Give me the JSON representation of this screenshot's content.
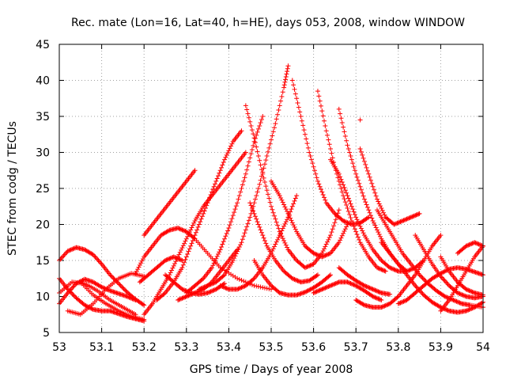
{
  "chart_data": {
    "type": "scatter",
    "title": "Rec. mate (Lon=16, Lat=40, h=HE), days 053, 2008, window WINDOW",
    "xlabel": "GPS time / Days of year 2008",
    "ylabel": "STEC from codg / TECUs",
    "xlim": [
      53,
      54
    ],
    "ylim": [
      5,
      45
    ],
    "xticks": [
      "53",
      "53.1",
      "53.2",
      "53.3",
      "53.4",
      "53.5",
      "53.6",
      "53.7",
      "53.8",
      "53.9",
      "54"
    ],
    "yticks": [
      "5",
      "10",
      "15",
      "20",
      "25",
      "30",
      "35",
      "40",
      "45"
    ],
    "grid": true,
    "marker": "+",
    "color": "#ff0000",
    "series": [
      {
        "x": [
          53.0,
          53.02,
          53.04,
          53.06,
          53.08,
          53.1,
          53.12,
          53.14,
          53.16,
          53.18,
          53.2
        ],
        "y": [
          15.0,
          16.3,
          16.8,
          16.5,
          15.8,
          14.5,
          13.0,
          11.8,
          10.6,
          9.6,
          8.8
        ]
      },
      {
        "x": [
          53.0,
          53.02,
          53.04,
          53.06,
          53.08,
          53.1,
          53.12,
          53.14,
          53.16,
          53.18,
          53.2
        ],
        "y": [
          12.5,
          11.0,
          9.8,
          8.8,
          8.2,
          8.0,
          8.0,
          7.6,
          7.2,
          6.9,
          6.6
        ]
      },
      {
        "x": [
          53.0,
          53.02,
          53.04,
          53.06,
          53.08,
          53.1,
          53.12,
          53.14,
          53.16,
          53.18
        ],
        "y": [
          9.0,
          10.5,
          11.8,
          12.4,
          12.0,
          11.3,
          10.8,
          10.4,
          10.0,
          9.5
        ]
      },
      {
        "x": [
          53.0,
          53.03,
          53.06,
          53.09,
          53.12,
          53.15,
          53.18
        ],
        "y": [
          10.5,
          12.0,
          11.8,
          10.8,
          9.5,
          8.5,
          7.5
        ]
      },
      {
        "x": [
          53.02,
          53.05,
          53.08,
          53.11,
          53.14,
          53.17,
          53.2
        ],
        "y": [
          8.0,
          7.5,
          9.0,
          11.0,
          12.5,
          13.2,
          12.8
        ]
      },
      {
        "x": [
          53.05,
          53.08,
          53.11,
          53.14,
          53.17,
          53.2
        ],
        "y": [
          12.0,
          10.2,
          9.0,
          8.0,
          7.2,
          6.8
        ]
      },
      {
        "x": [
          53.18,
          53.2,
          53.22,
          53.24,
          53.26,
          53.28,
          53.3,
          53.32,
          53.35,
          53.38,
          53.42,
          53.46,
          53.5
        ],
        "y": [
          13.2,
          15.5,
          17.0,
          18.5,
          19.2,
          19.5,
          19.0,
          18.0,
          16.0,
          14.0,
          12.5,
          11.5,
          11.0
        ]
      },
      {
        "x": [
          53.2,
          53.22,
          53.24,
          53.26,
          53.28,
          53.3,
          53.32,
          53.34,
          53.36,
          53.38,
          53.4,
          53.42,
          53.44
        ],
        "y": [
          7.5,
          9.0,
          11.0,
          13.0,
          15.5,
          18.0,
          20.5,
          22.5,
          24.0,
          25.5,
          27.0,
          28.5,
          30.0
        ]
      },
      {
        "x": [
          53.2,
          53.22,
          53.24,
          53.26,
          53.28,
          53.3,
          53.32
        ],
        "y": [
          18.5,
          20.0,
          21.5,
          23.0,
          24.5,
          26.0,
          27.5
        ]
      },
      {
        "x": [
          53.23,
          53.25,
          53.27,
          53.29,
          53.31,
          53.33,
          53.35,
          53.37,
          53.39,
          53.41,
          53.43
        ],
        "y": [
          9.5,
          10.5,
          12.0,
          14.0,
          17.0,
          20.0,
          23.0,
          26.0,
          29.0,
          31.5,
          33.0
        ]
      },
      {
        "x": [
          53.3,
          53.32,
          53.34,
          53.36,
          53.38,
          53.4,
          53.42,
          53.44,
          53.46,
          53.48
        ],
        "y": [
          10.5,
          11.5,
          12.5,
          14.0,
          16.5,
          19.5,
          23.0,
          27.0,
          31.5,
          35.0
        ]
      },
      {
        "x": [
          53.33,
          53.35,
          53.37,
          53.39,
          53.41,
          53.43,
          53.45,
          53.47,
          53.49,
          53.51,
          53.53,
          53.54
        ],
        "y": [
          11.0,
          11.5,
          12.0,
          13.0,
          15.0,
          17.5,
          21.0,
          25.0,
          29.5,
          34.0,
          39.0,
          42.0
        ]
      },
      {
        "x": [
          53.44,
          53.46,
          53.48,
          53.5,
          53.52,
          53.54,
          53.56,
          53.58,
          53.6,
          53.62,
          53.64,
          53.66
        ],
        "y": [
          36.5,
          32.0,
          27.0,
          22.5,
          19.0,
          16.5,
          15.0,
          14.0,
          14.5,
          16.0,
          18.5,
          22.0
        ]
      },
      {
        "x": [
          53.45,
          53.47,
          53.49,
          53.51,
          53.53,
          53.55,
          53.57,
          53.59,
          53.61
        ],
        "y": [
          23.0,
          20.0,
          17.0,
          15.0,
          13.5,
          12.5,
          12.0,
          12.2,
          13.0
        ]
      },
      {
        "x": [
          53.5,
          53.52,
          53.54,
          53.56,
          53.58,
          53.6,
          53.62,
          53.64,
          53.66,
          53.68
        ],
        "y": [
          26.0,
          24.0,
          21.5,
          19.0,
          17.0,
          16.0,
          15.5,
          16.0,
          17.5,
          20.0
        ]
      },
      {
        "x": [
          53.55,
          53.57,
          53.59,
          53.61,
          53.63,
          53.65,
          53.67,
          53.69,
          53.71,
          53.73
        ],
        "y": [
          40.0,
          35.0,
          30.0,
          26.0,
          23.0,
          21.5,
          20.5,
          20.0,
          20.2,
          21.0
        ]
      },
      {
        "x": [
          53.61,
          53.63,
          53.65,
          53.67,
          53.69,
          53.71,
          53.73,
          53.75,
          53.77
        ],
        "y": [
          38.5,
          33.0,
          28.0,
          24.0,
          20.5,
          17.5,
          15.5,
          14.0,
          13.5
        ]
      },
      {
        "x": [
          53.64,
          53.66,
          53.68,
          53.7,
          53.72,
          53.74,
          53.76,
          53.78,
          53.8,
          53.82,
          53.84,
          53.86
        ],
        "y": [
          29.0,
          27.0,
          24.0,
          21.0,
          18.5,
          16.5,
          15.0,
          14.0,
          13.5,
          13.5,
          14.0,
          15.0
        ]
      },
      {
        "x": [
          53.66,
          53.68,
          53.7,
          53.72,
          53.74,
          53.76,
          53.78,
          53.8,
          53.82
        ],
        "y": [
          36.0,
          31.0,
          27.0,
          23.5,
          20.5,
          18.0,
          16.0,
          14.5,
          13.5
        ]
      },
      {
        "x": [
          53.71,
          53.73,
          53.75,
          53.77,
          53.79,
          53.81,
          53.83,
          53.85
        ],
        "y": [
          30.5,
          27.0,
          23.5,
          21.0,
          20.0,
          20.5,
          21.0,
          21.5
        ]
      },
      {
        "x": [
          53.7,
          53.72,
          53.74,
          53.76,
          53.78,
          53.8,
          53.82,
          53.84,
          53.86,
          53.88,
          53.9
        ],
        "y": [
          9.5,
          8.8,
          8.5,
          8.5,
          9.0,
          10.0,
          11.5,
          13.0,
          15.0,
          17.0,
          18.5
        ]
      },
      {
        "x": [
          53.75,
          53.77,
          53.79,
          53.81,
          53.83,
          53.85,
          53.87,
          53.89,
          53.91,
          53.93,
          53.95,
          53.97,
          54.0
        ],
        "y": [
          22.0,
          20.0,
          18.0,
          16.0,
          14.5,
          13.0,
          11.8,
          10.8,
          10.0,
          9.5,
          9.0,
          8.8,
          8.5
        ]
      },
      {
        "x": [
          53.76,
          53.78,
          53.8,
          53.82,
          53.84,
          53.86,
          53.88,
          53.9,
          53.92,
          53.94,
          53.96,
          53.98,
          54.0
        ],
        "y": [
          17.5,
          16.0,
          14.5,
          13.0,
          11.5,
          10.2,
          9.2,
          8.5,
          8.0,
          7.8,
          8.0,
          8.5,
          9.2
        ]
      },
      {
        "x": [
          53.8,
          53.82,
          53.84,
          53.86,
          53.88,
          53.9,
          53.92,
          53.94,
          53.96,
          53.98,
          54.0
        ],
        "y": [
          9.0,
          9.5,
          10.5,
          11.5,
          12.5,
          13.2,
          13.8,
          14.0,
          13.8,
          13.4,
          13.0
        ]
      },
      {
        "x": [
          53.84,
          53.86,
          53.88,
          53.9,
          53.92,
          53.94,
          53.96,
          53.98,
          54.0
        ],
        "y": [
          18.5,
          16.5,
          14.5,
          12.8,
          11.5,
          10.5,
          10.0,
          9.8,
          10.0
        ]
      },
      {
        "x": [
          53.9,
          53.92,
          53.94,
          53.96,
          53.98,
          54.0
        ],
        "y": [
          8.0,
          9.5,
          11.5,
          13.5,
          15.5,
          17.0
        ]
      },
      {
        "x": [
          53.9,
          53.92,
          53.94,
          53.96,
          53.98,
          54.0
        ],
        "y": [
          15.5,
          13.5,
          12.0,
          11.0,
          10.5,
          10.2
        ]
      },
      {
        "x": [
          53.94,
          53.96,
          53.98,
          54.0
        ],
        "y": [
          16.0,
          17.0,
          17.5,
          17.0
        ]
      },
      {
        "x": [
          53.38,
          53.4,
          53.42,
          53.44,
          53.46,
          53.48,
          53.5,
          53.52,
          53.54,
          53.56
        ],
        "y": [
          11.5,
          11.0,
          11.0,
          11.5,
          12.5,
          14.0,
          16.0,
          18.5,
          21.0,
          24.0
        ]
      },
      {
        "x": [
          53.46,
          53.48,
          53.5,
          53.52,
          53.54,
          53.56,
          53.58,
          53.6,
          53.62,
          53.64
        ],
        "y": [
          15.0,
          13.0,
          11.5,
          10.5,
          10.2,
          10.2,
          10.6,
          11.2,
          12.0,
          13.0
        ]
      },
      {
        "x": [
          53.6,
          53.62,
          53.64,
          53.66,
          53.68,
          53.7,
          53.72,
          53.74,
          53.76
        ],
        "y": [
          10.5,
          11.0,
          11.5,
          12.0,
          12.0,
          11.5,
          10.8,
          10.0,
          9.5
        ]
      },
      {
        "x": [
          53.66,
          53.68,
          53.7,
          53.72,
          53.74,
          53.76,
          53.78
        ],
        "y": [
          14.0,
          13.0,
          12.2,
          11.5,
          11.0,
          10.5,
          10.3
        ]
      },
      {
        "x": [
          53.28,
          53.3,
          53.32,
          53.34,
          53.36,
          53.38,
          53.4,
          53.42
        ],
        "y": [
          9.5,
          10.0,
          10.5,
          11.0,
          12.0,
          13.5,
          15.0,
          16.5
        ]
      },
      {
        "x": [
          53.25,
          53.27,
          53.29,
          53.31,
          53.33,
          53.35,
          53.37,
          53.39
        ],
        "y": [
          13.0,
          12.0,
          11.0,
          10.5,
          10.3,
          10.5,
          11.0,
          11.8
        ]
      },
      {
        "x": [
          53.19,
          53.21,
          53.23,
          53.25,
          53.27,
          53.29
        ],
        "y": [
          12.0,
          13.0,
          14.0,
          15.0,
          15.5,
          15.0
        ]
      },
      {
        "x": [
          53.71
        ],
        "y": [
          34.5
        ]
      }
    ]
  }
}
